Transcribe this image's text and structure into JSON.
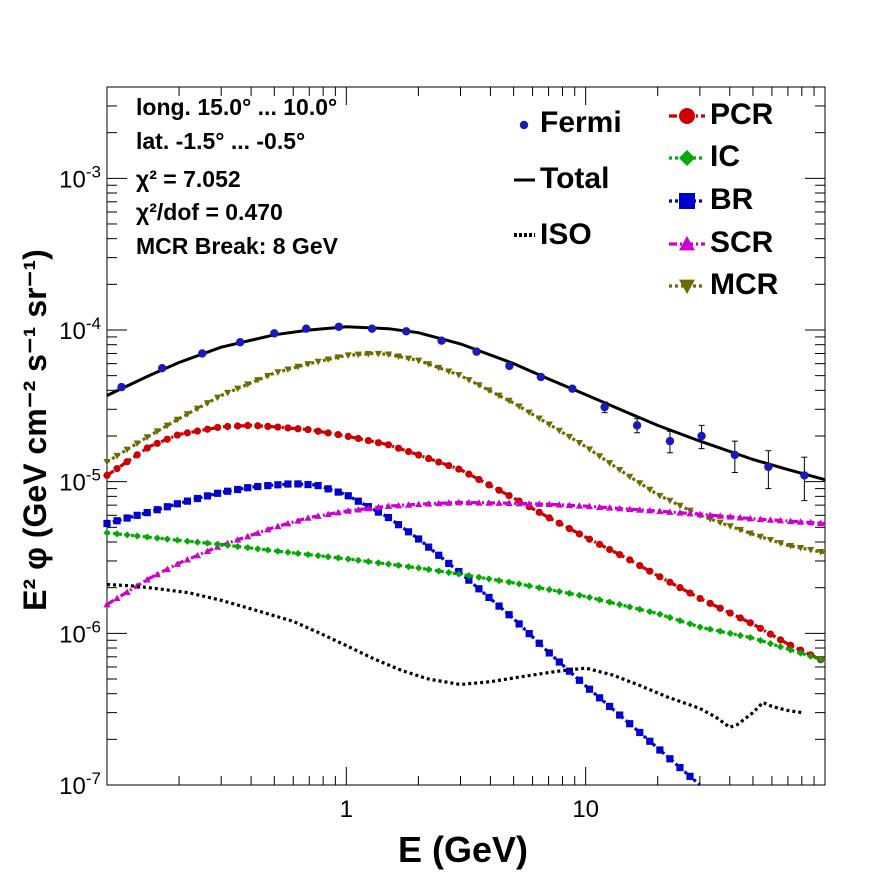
{
  "chart_data": {
    "type": "line",
    "xscale": "log",
    "yscale": "log",
    "xlim": [
      0.1,
      100
    ],
    "ylim": [
      1e-07,
      0.004
    ],
    "xlabel": "E (GeV)",
    "ylabel": "E² φ (GeV cm⁻² s⁻¹ sr⁻¹)",
    "xticks": [
      {
        "value": 1,
        "label": "1"
      },
      {
        "value": 10,
        "label": "10"
      }
    ],
    "yticks": [
      {
        "value": 1e-07,
        "label": "10-7",
        "base": "10",
        "exp": "-7"
      },
      {
        "value": 1e-06,
        "label": "10-6",
        "base": "10",
        "exp": "-6"
      },
      {
        "value": 1e-05,
        "label": "10-5",
        "base": "10",
        "exp": "-5"
      },
      {
        "value": 0.0001,
        "label": "10-4",
        "base": "10",
        "exp": "-4"
      },
      {
        "value": 0.001,
        "label": "10-3",
        "base": "10",
        "exp": "-3"
      }
    ],
    "annotations": [
      "long. 15.0° ... 10.0°",
      "lat. -1.5° ... -0.5°",
      "χ² = 7.052",
      "χ²/dof = 0.470",
      "MCR Break:  8 GeV"
    ],
    "legend": [
      {
        "key": "fermi",
        "label": "Fermi"
      },
      {
        "key": "total",
        "label": "Total"
      },
      {
        "key": "iso",
        "label": "ISO"
      },
      {
        "key": "pcr",
        "label": "PCR"
      },
      {
        "key": "ic",
        "label": "IC"
      },
      {
        "key": "br",
        "label": "BR"
      },
      {
        "key": "scr",
        "label": "SCR"
      },
      {
        "key": "mcr",
        "label": "MCR"
      }
    ],
    "fermi": {
      "name": "Fermi",
      "color": "#1a1ab8",
      "x": [
        0.115,
        0.17,
        0.25,
        0.36,
        0.5,
        0.68,
        0.93,
        1.28,
        1.78,
        2.5,
        3.5,
        4.8,
        6.5,
        8.8,
        12.0,
        16.4,
        22.5,
        30.5,
        42.0,
        58.0,
        82.0
      ],
      "y": [
        4.2e-05,
        5.6e-05,
        7e-05,
        8.3e-05,
        9.5e-05,
        0.000102,
        0.000105,
        0.000102,
        9.8e-05,
        8.5e-05,
        7.2e-05,
        5.8e-05,
        4.9e-05,
        4.1e-05,
        3.1e-05,
        2.35e-05,
        1.85e-05,
        2e-05,
        1.5e-05,
        1.25e-05,
        1.1e-05
      ],
      "yerr": [
        0,
        0,
        0,
        0,
        0,
        0,
        0,
        0,
        0,
        0,
        0,
        0,
        0,
        0,
        2.5e-06,
        2.5e-06,
        3e-06,
        3.5e-06,
        3.5e-06,
        3.5e-06,
        3.5e-06
      ]
    },
    "series": [
      {
        "name": "Total",
        "color": "#000000",
        "style": "solid",
        "marker": "none",
        "x": [
          0.1,
          0.15,
          0.2,
          0.3,
          0.5,
          0.7,
          1.0,
          1.5,
          2,
          3,
          5,
          7,
          10,
          15,
          20,
          30,
          50,
          70,
          100
        ],
        "y": [
          3.7e-05,
          5e-05,
          6.1e-05,
          7.7e-05,
          9.3e-05,
          0.0001,
          0.000105,
          0.000102,
          9.6e-05,
          8.1e-05,
          6e-05,
          4.75e-05,
          3.75e-05,
          2.85e-05,
          2.35e-05,
          1.85e-05,
          1.4e-05,
          1.2e-05,
          1.03e-05
        ]
      },
      {
        "name": "MCR",
        "color": "#6b6b00",
        "style": "dotted",
        "marker": "triangle-down",
        "x": [
          0.1,
          0.15,
          0.2,
          0.3,
          0.5,
          0.7,
          1.0,
          1.3,
          1.5,
          2,
          3,
          5,
          7,
          10,
          15,
          20,
          30,
          50,
          70,
          100
        ],
        "y": [
          1.35e-05,
          2e-05,
          2.6e-05,
          3.7e-05,
          5.2e-05,
          6e-05,
          6.8e-05,
          7e-05,
          6.9e-05,
          6.3e-05,
          5e-05,
          3.3e-05,
          2.4e-05,
          1.7e-05,
          1.1e-05,
          8.2e-06,
          6e-06,
          4.5e-06,
          3.8e-06,
          3.4e-06
        ]
      },
      {
        "name": "PCR",
        "color": "#cc0000",
        "style": "dash-dot",
        "marker": "circle",
        "x": [
          0.1,
          0.15,
          0.2,
          0.3,
          0.4,
          0.5,
          0.7,
          1.0,
          1.5,
          2,
          3,
          5,
          7,
          10,
          15,
          20,
          30,
          50,
          70,
          100
        ],
        "y": [
          1.1e-05,
          1.7e-05,
          2.05e-05,
          2.3e-05,
          2.35e-05,
          2.3e-05,
          2.2e-05,
          2e-05,
          1.75e-05,
          1.5e-05,
          1.2e-05,
          7.8e-06,
          5.8e-06,
          4.3e-06,
          3.1e-06,
          2.4e-06,
          1.7e-06,
          1.15e-06,
          8.5e-07,
          6.5e-07
        ]
      },
      {
        "name": "BR",
        "color": "#0000cc",
        "style": "dotted",
        "marker": "square",
        "x": [
          0.1,
          0.15,
          0.2,
          0.3,
          0.4,
          0.5,
          0.6,
          0.75,
          1.0,
          1.5,
          2,
          3,
          5,
          7,
          10,
          15,
          20,
          30
        ],
        "y": [
          5.3e-06,
          6.3e-06,
          7.2e-06,
          8.5e-06,
          9.2e-06,
          9.5e-06,
          9.7e-06,
          9.5e-06,
          8.2e-06,
          5.8e-06,
          4.2e-06,
          2.5e-06,
          1.25e-06,
          7.5e-07,
          4.5e-07,
          2.6e-07,
          1.75e-07,
          1e-07
        ]
      },
      {
        "name": "SCR",
        "color": "#cc00cc",
        "style": "dash-dot",
        "marker": "triangle-up",
        "x": [
          0.1,
          0.15,
          0.2,
          0.3,
          0.5,
          0.7,
          1.0,
          1.5,
          2,
          3,
          5,
          7,
          10,
          15,
          20,
          30,
          50,
          70,
          100
        ],
        "y": [
          1.55e-06,
          2.3e-06,
          2.9e-06,
          3.8e-06,
          5e-06,
          5.8e-06,
          6.4e-06,
          6.9e-06,
          7.1e-06,
          7.3e-06,
          7.2e-06,
          7.1e-06,
          6.9e-06,
          6.6e-06,
          6.4e-06,
          6.1e-06,
          5.7e-06,
          5.5e-06,
          5.3e-06
        ]
      },
      {
        "name": "IC",
        "color": "#00aa00",
        "style": "dotted",
        "marker": "diamond",
        "x": [
          0.1,
          0.15,
          0.2,
          0.3,
          0.5,
          1.0,
          2,
          3,
          5,
          10,
          20,
          30,
          50,
          100
        ],
        "y": [
          4.6e-06,
          4.3e-06,
          4.1e-06,
          3.85e-06,
          3.5e-06,
          3.1e-06,
          2.7e-06,
          2.45e-06,
          2.15e-06,
          1.75e-06,
          1.35e-06,
          1.1e-06,
          9.3e-07,
          6.6e-07
        ]
      },
      {
        "name": "ISO",
        "color": "#000000",
        "style": "dotted",
        "marker": "none",
        "x": [
          0.1,
          0.13,
          0.17,
          0.22,
          0.3,
          0.4,
          0.6,
          0.8,
          1.0,
          1.3,
          1.7,
          2.2,
          3.0,
          4.0,
          5.5,
          7.5,
          10,
          13,
          17,
          22,
          30,
          35,
          40,
          43,
          50,
          55,
          60,
          70,
          80
        ],
        "y": [
          2.1e-06,
          2.05e-06,
          1.95e-06,
          1.85e-06,
          1.65e-06,
          1.45e-06,
          1.2e-06,
          9.8e-07,
          8.3e-07,
          6.8e-07,
          5.7e-07,
          5e-07,
          4.6e-07,
          4.8e-07,
          5.2e-07,
          5.6e-07,
          5.9e-07,
          5.3e-07,
          4.5e-07,
          3.8e-07,
          3.2e-07,
          2.8e-07,
          2.4e-07,
          2.5e-07,
          3e-07,
          3.5e-07,
          3.3e-07,
          3.1e-07,
          3e-07
        ]
      }
    ]
  }
}
